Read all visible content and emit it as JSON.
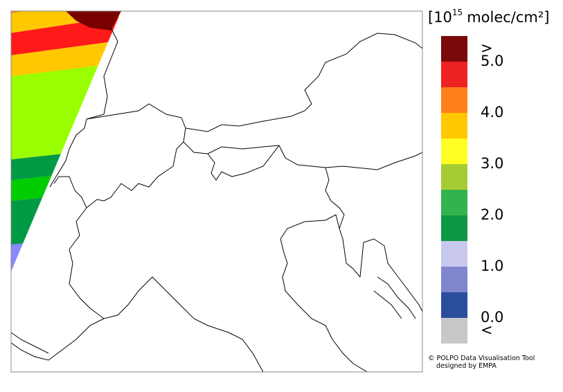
{
  "legend": {
    "title_prefix": "[10",
    "title_exponent": "15",
    "title_suffix": "molec/cm²]",
    "over_label": ">",
    "under_label": "<",
    "colors": [
      "#7a0a0a",
      "#ee2222",
      "#ff7f1a",
      "#ffc800",
      "#ffff22",
      "#a6cc33",
      "#33b34d",
      "#0d9944",
      "#c8c8ee",
      "#7f86cc",
      "#2a4d9e",
      "#c8c8c8"
    ],
    "ticks": [
      {
        "value": 5,
        "label": "5.0"
      },
      {
        "value": 4,
        "label": "4.0"
      },
      {
        "value": 3,
        "label": "3.0"
      },
      {
        "value": 2,
        "label": "2.0"
      },
      {
        "value": 1,
        "label": "1.0"
      },
      {
        "value": 0,
        "label": "0.0"
      }
    ]
  },
  "credit": {
    "line1": "© POLPO Data Visualisation Tool",
    "line2": "designed by EMPA"
  }
}
